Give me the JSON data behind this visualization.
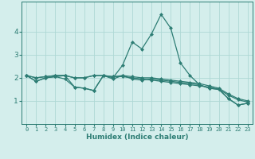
{
  "xlabel": "Humidex (Indice chaleur)",
  "x_values": [
    0,
    1,
    2,
    3,
    4,
    5,
    6,
    7,
    8,
    9,
    10,
    11,
    12,
    13,
    14,
    15,
    16,
    17,
    18,
    19,
    20,
    21,
    22,
    23
  ],
  "line1": [
    2.1,
    1.85,
    2.0,
    2.05,
    2.1,
    1.6,
    1.55,
    1.45,
    2.1,
    2.0,
    2.55,
    3.55,
    3.25,
    3.9,
    4.75,
    4.15,
    2.65,
    2.1,
    1.7,
    1.55,
    1.5,
    1.1,
    0.82,
    0.9
  ],
  "line2": [
    2.1,
    1.85,
    2.0,
    2.05,
    1.95,
    1.6,
    1.55,
    1.45,
    2.1,
    1.95,
    2.1,
    1.95,
    1.9,
    1.95,
    1.9,
    1.85,
    1.8,
    1.75,
    1.7,
    1.55,
    1.5,
    1.1,
    0.82,
    0.9
  ],
  "line3": [
    2.1,
    2.0,
    2.05,
    2.1,
    2.1,
    2.0,
    2.0,
    2.1,
    2.1,
    2.05,
    2.1,
    2.05,
    2.0,
    2.0,
    1.95,
    1.9,
    1.85,
    1.8,
    1.75,
    1.65,
    1.55,
    1.3,
    1.1,
    1.0
  ],
  "line4": [
    2.1,
    2.0,
    2.05,
    2.1,
    2.1,
    2.0,
    2.0,
    2.1,
    2.1,
    2.05,
    2.05,
    2.0,
    1.95,
    1.9,
    1.85,
    1.8,
    1.75,
    1.7,
    1.65,
    1.6,
    1.5,
    1.25,
    1.05,
    0.95
  ],
  "line_color": "#2d7d74",
  "bg_color": "#d4eeec",
  "grid_color": "#aed8d5",
  "ylim": [
    0,
    5.3
  ],
  "yticks": [
    1,
    2,
    3,
    4
  ],
  "xlim": [
    -0.5,
    23.5
  ]
}
